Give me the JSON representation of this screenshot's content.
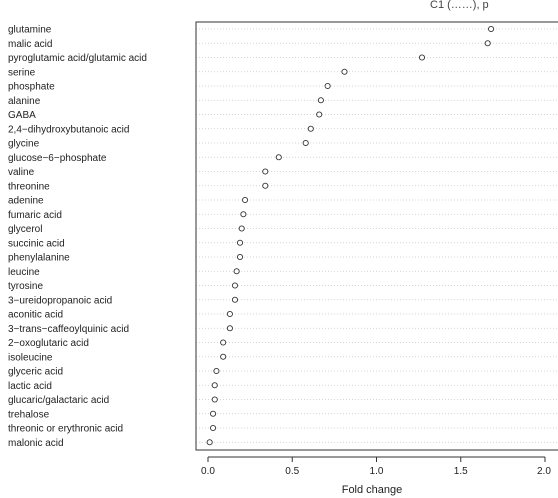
{
  "chart_data": {
    "type": "scatter",
    "title": "",
    "title_fragment": "C1 (……), p",
    "xlabel": "Fold change",
    "ylabel": "",
    "xlim": [
      0,
      2
    ],
    "xticks": [
      "0.0",
      "0.5",
      "1.0",
      "1.5",
      "2.0"
    ],
    "grid": "dotted horizontal",
    "categories": [
      "glutamine",
      "malic acid",
      "pyroglutamic acid/glutamic acid",
      "serine",
      "phosphate",
      "alanine",
      "GABA",
      "2,4−dihydroxybutanoic acid",
      "glycine",
      "glucose−6−phosphate",
      "valine",
      "threonine",
      "adenine",
      "fumaric acid",
      "glycerol",
      "succinic acid",
      "phenylalanine",
      "leucine",
      "tyrosine",
      "3−ureidopropanoic acid",
      "aconitic acid",
      "3−trans−caffeoylquinic acid",
      "2−oxoglutaric acid",
      "isoleucine",
      "glyceric acid",
      "lactic acid",
      "glucaric/galactaric acid",
      "trehalose",
      "threonic or erythronic acid",
      "malonic acid"
    ],
    "values": [
      1.68,
      1.66,
      1.27,
      0.81,
      0.71,
      0.67,
      0.66,
      0.61,
      0.58,
      0.42,
      0.34,
      0.34,
      0.22,
      0.21,
      0.2,
      0.19,
      0.19,
      0.17,
      0.16,
      0.16,
      0.13,
      0.13,
      0.09,
      0.09,
      0.05,
      0.04,
      0.04,
      0.03,
      0.03,
      0.01
    ]
  }
}
